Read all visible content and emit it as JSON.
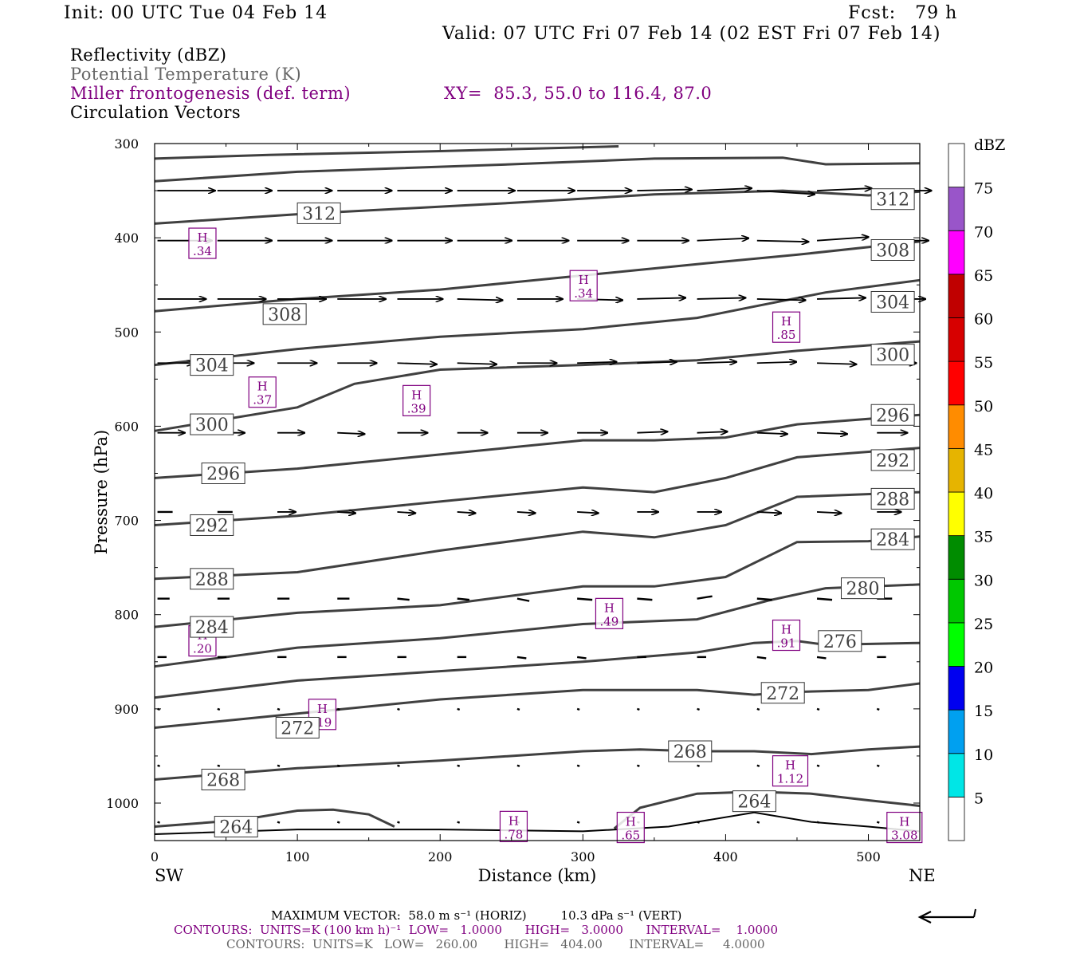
{
  "header": {
    "init": "Init: 00 UTC Tue 04 Feb 14",
    "fcst": "Fcst:   79 h",
    "valid": "Valid: 07 UTC Fri 07 Feb 14 (02 EST Fri 07 Feb 14)"
  },
  "fields": {
    "reflectivity": "Reflectivity (dBZ)",
    "theta": "Potential Temperature (K)",
    "frontogenesis": "Miller frontogenesis (def. term)",
    "xy": "XY=  85.3, 55.0 to 116.4, 87.0",
    "vectors": "Circulation Vectors"
  },
  "colors": {
    "theta_contour": "#404040",
    "frontogenesis": "#800080",
    "vector": "#000000"
  },
  "colorbar": {
    "title": "dBZ",
    "labels": [
      "5",
      "10",
      "15",
      "20",
      "25",
      "30",
      "35",
      "40",
      "45",
      "50",
      "55",
      "60",
      "65",
      "70",
      "75"
    ],
    "bins": [
      {
        "color": "#ffffff"
      },
      {
        "color": "#00e6e6"
      },
      {
        "color": "#00a0f0"
      },
      {
        "color": "#0000f0"
      },
      {
        "color": "#00ff00"
      },
      {
        "color": "#00c800"
      },
      {
        "color": "#008c00"
      },
      {
        "color": "#ffff00"
      },
      {
        "color": "#e6b400"
      },
      {
        "color": "#ff8c00"
      },
      {
        "color": "#ff0000"
      },
      {
        "color": "#d70000"
      },
      {
        "color": "#c00000"
      },
      {
        "color": "#ff00ff"
      },
      {
        "color": "#9955c9"
      },
      {
        "color": "#ffffff"
      }
    ]
  },
  "chart_data": {
    "type": "cross-section",
    "xlabel": "Distance (km)",
    "ylabel": "Pressure (hPa)",
    "xlim": [
      0,
      536
    ],
    "ylim": [
      1030,
      300
    ],
    "x_ticks": [
      0,
      100,
      200,
      300,
      400,
      500
    ],
    "y_ticks": [
      300,
      400,
      500,
      600,
      700,
      800,
      900,
      1000
    ],
    "x_end_labels": {
      "left": "SW",
      "right": "NE"
    },
    "theta_contours": [
      {
        "level": null,
        "points": [
          [
            0,
            316
          ],
          [
            80,
            312
          ],
          [
            200,
            308
          ],
          [
            325,
            303
          ]
        ]
      },
      {
        "level": null,
        "points": [
          [
            0,
            340
          ],
          [
            100,
            330
          ],
          [
            250,
            322
          ],
          [
            350,
            316
          ],
          [
            440,
            315
          ],
          [
            470,
            322
          ],
          [
            536,
            321
          ]
        ]
      },
      {
        "level": "312",
        "label_at": [
          100,
          374
        ],
        "points": [
          [
            0,
            385
          ],
          [
            100,
            375
          ],
          [
            250,
            363
          ],
          [
            350,
            354
          ],
          [
            440,
            350
          ],
          [
            500,
            355
          ],
          [
            536,
            351
          ]
        ]
      },
      {
        "level": "308",
        "label_at": [
          76,
          481
        ],
        "points": [
          [
            0,
            478
          ],
          [
            100,
            465
          ],
          [
            200,
            455
          ],
          [
            300,
            440
          ],
          [
            380,
            428
          ],
          [
            450,
            418
          ],
          [
            536,
            404
          ]
        ]
      },
      {
        "level": "304",
        "label_at": [
          25,
          535
        ],
        "points": [
          [
            0,
            535
          ],
          [
            100,
            518
          ],
          [
            200,
            505
          ],
          [
            300,
            497
          ],
          [
            380,
            485
          ],
          [
            430,
            470
          ],
          [
            470,
            458
          ],
          [
            536,
            445
          ]
        ]
      },
      {
        "level": "300",
        "label_at": [
          25,
          598
        ],
        "points": [
          [
            0,
            605
          ],
          [
            100,
            580
          ],
          [
            140,
            555
          ],
          [
            200,
            540
          ],
          [
            300,
            535
          ],
          [
            380,
            530
          ],
          [
            450,
            520
          ],
          [
            536,
            510
          ]
        ]
      },
      {
        "level": "296",
        "label_at": [
          33,
          650
        ],
        "points": [
          [
            0,
            655
          ],
          [
            100,
            645
          ],
          [
            200,
            630
          ],
          [
            300,
            615
          ],
          [
            350,
            615
          ],
          [
            400,
            612
          ],
          [
            450,
            598
          ],
          [
            536,
            588
          ]
        ]
      },
      {
        "level": "292",
        "label_at": [
          25,
          705
        ],
        "points": [
          [
            0,
            705
          ],
          [
            100,
            695
          ],
          [
            200,
            680
          ],
          [
            300,
            665
          ],
          [
            350,
            670
          ],
          [
            400,
            655
          ],
          [
            450,
            633
          ],
          [
            536,
            623
          ]
        ]
      },
      {
        "level": "288",
        "label_at": [
          25,
          762
        ],
        "points": [
          [
            0,
            762
          ],
          [
            100,
            755
          ],
          [
            200,
            732
          ],
          [
            300,
            712
          ],
          [
            350,
            718
          ],
          [
            400,
            705
          ],
          [
            450,
            675
          ],
          [
            536,
            670
          ]
        ]
      },
      {
        "level": "284",
        "label_at": [
          25,
          813
        ],
        "points": [
          [
            0,
            813
          ],
          [
            100,
            798
          ],
          [
            200,
            790
          ],
          [
            300,
            770
          ],
          [
            350,
            770
          ],
          [
            400,
            760
          ],
          [
            450,
            723
          ],
          [
            500,
            722
          ],
          [
            536,
            717
          ]
        ]
      },
      {
        "level": "280",
        "label_at": [
          null
        ],
        "points": [
          [
            0,
            855
          ],
          [
            100,
            835
          ],
          [
            200,
            825
          ],
          [
            300,
            810
          ],
          [
            380,
            805
          ],
          [
            430,
            785
          ],
          [
            470,
            772
          ],
          [
            536,
            768
          ]
        ]
      },
      {
        "level": "276",
        "label_at": [
          null
        ],
        "points": [
          [
            0,
            888
          ],
          [
            100,
            870
          ],
          [
            200,
            860
          ],
          [
            300,
            850
          ],
          [
            380,
            840
          ],
          [
            420,
            830
          ],
          [
            450,
            828
          ],
          [
            470,
            832
          ],
          [
            536,
            830
          ]
        ]
      },
      {
        "level": "272",
        "label_at": [
          85,
          920
        ],
        "points": [
          [
            0,
            920
          ],
          [
            100,
            905
          ],
          [
            200,
            890
          ],
          [
            300,
            880
          ],
          [
            380,
            880
          ],
          [
            420,
            885
          ],
          [
            450,
            882
          ],
          [
            500,
            880
          ],
          [
            536,
            873
          ]
        ]
      },
      {
        "level": "268",
        "label_at": [
          33,
          975
        ],
        "points": [
          [
            0,
            975
          ],
          [
            100,
            963
          ],
          [
            200,
            955
          ],
          [
            300,
            945
          ],
          [
            340,
            943
          ],
          [
            380,
            945
          ],
          [
            420,
            945
          ],
          [
            460,
            948
          ],
          [
            500,
            943
          ],
          [
            536,
            940
          ]
        ]
      },
      {
        "level": "264",
        "label_at": [
          42,
          1025
        ],
        "points": [
          [
            0,
            1025
          ],
          [
            60,
            1018
          ],
          [
            100,
            1008
          ],
          [
            125,
            1007
          ],
          [
            150,
            1012
          ],
          [
            168,
            1025
          ]
        ]
      },
      {
        "level": "264b",
        "label_at": [
          null
        ],
        "points": [
          [
            322,
            1027
          ],
          [
            340,
            1005
          ],
          [
            380,
            990
          ],
          [
            420,
            988
          ],
          [
            460,
            990
          ],
          [
            500,
            997
          ],
          [
            536,
            1003
          ]
        ]
      },
      {
        "level": null,
        "points": [
          [
            0,
            1033
          ],
          [
            100,
            1028
          ],
          [
            200,
            1028
          ],
          [
            300,
            1030
          ],
          [
            360,
            1025
          ],
          [
            420,
            1010
          ],
          [
            460,
            1020
          ],
          [
            500,
            1025
          ],
          [
            536,
            1030
          ]
        ]
      }
    ],
    "theta_labels": [
      {
        "text": "312",
        "x": 100,
        "p": 374
      },
      {
        "text": "312",
        "x": 502,
        "p": 359
      },
      {
        "text": "308",
        "x": 76,
        "p": 481
      },
      {
        "text": "308",
        "x": 502,
        "p": 413
      },
      {
        "text": "304",
        "x": 25,
        "p": 535
      },
      {
        "text": "304",
        "x": 502,
        "p": 468
      },
      {
        "text": "300",
        "x": 25,
        "p": 598
      },
      {
        "text": "300",
        "x": 502,
        "p": 524
      },
      {
        "text": "296",
        "x": 33,
        "p": 650
      },
      {
        "text": "296",
        "x": 502,
        "p": 588
      },
      {
        "text": "292",
        "x": 25,
        "p": 705
      },
      {
        "text": "292",
        "x": 502,
        "p": 636
      },
      {
        "text": "288",
        "x": 25,
        "p": 762
      },
      {
        "text": "288",
        "x": 502,
        "p": 677
      },
      {
        "text": "284",
        "x": 25,
        "p": 813
      },
      {
        "text": "284",
        "x": 502,
        "p": 720
      },
      {
        "text": "280",
        "x": 481,
        "p": 772
      },
      {
        "text": "276",
        "x": 465,
        "p": 828
      },
      {
        "text": "272",
        "x": 85,
        "p": 920
      },
      {
        "text": "272",
        "x": 425,
        "p": 883
      },
      {
        "text": "268",
        "x": 33,
        "p": 975
      },
      {
        "text": "268",
        "x": 360,
        "p": 945
      },
      {
        "text": "264",
        "x": 42,
        "p": 1025
      },
      {
        "text": "264",
        "x": 405,
        "p": 998
      }
    ],
    "frontogenesis_maxima": [
      {
        "label": "H",
        "value": ".34",
        "x": 24,
        "p": 405
      },
      {
        "label": "H",
        "value": ".34",
        "x": 291,
        "p": 450
      },
      {
        "label": "H",
        "value": ".85",
        "x": 433,
        "p": 494
      },
      {
        "label": "H",
        "value": ".37",
        "x": 66,
        "p": 563
      },
      {
        "label": "H",
        "value": ".39",
        "x": 174,
        "p": 572
      },
      {
        "label": "H",
        "value": ".49",
        "x": 309,
        "p": 798
      },
      {
        "label": "H",
        "value": ".91",
        "x": 433,
        "p": 821
      },
      {
        "label": "H",
        "value": ".20",
        "x": 24,
        "p": 827
      },
      {
        "label": "H",
        "value": ".19",
        "x": 108,
        "p": 905
      },
      {
        "label": "H",
        "value": "1.12",
        "x": 433,
        "p": 965
      },
      {
        "label": "H",
        "value": ".78",
        "x": 242,
        "p": 1024
      },
      {
        "label": "H",
        "value": ".65",
        "x": 324,
        "p": 1025
      },
      {
        "label": "H",
        "value": "3.08",
        "x": 513,
        "p": 1025
      }
    ],
    "vector_rows": [
      {
        "p": 350,
        "u": [
          38,
          36,
          36,
          36,
          36,
          38,
          38,
          36,
          36,
          36,
          38,
          36
        ],
        "w": [
          0,
          0,
          0,
          0,
          0,
          0,
          0,
          0,
          -1,
          -2,
          3,
          -2
        ]
      },
      {
        "p": 403,
        "u": [
          36,
          36,
          36,
          36,
          36,
          36,
          34,
          34,
          34,
          34,
          34,
          34
        ],
        "w": [
          0,
          0,
          0,
          0,
          0,
          0,
          0,
          0,
          0,
          -2,
          1,
          -3
        ]
      },
      {
        "p": 465,
        "u": [
          32,
          32,
          32,
          32,
          30,
          30,
          30,
          30,
          32,
          32,
          32,
          32
        ],
        "w": [
          0,
          0,
          0,
          0,
          0,
          1,
          0,
          1,
          -1,
          -1,
          1,
          -1
        ]
      },
      {
        "p": 533,
        "u": [
          24,
          24,
          26,
          26,
          26,
          26,
          26,
          26,
          26,
          26,
          26,
          26
        ],
        "w": [
          0,
          0,
          0,
          0,
          1,
          1,
          0,
          -1,
          -1,
          -1,
          -1,
          1
        ]
      },
      {
        "p": 607,
        "u": [
          18,
          18,
          18,
          18,
          20,
          20,
          20,
          20,
          20,
          20,
          20,
          20
        ],
        "w": [
          0,
          0,
          0,
          1,
          0,
          0,
          0,
          0,
          -1,
          -1,
          1,
          1
        ]
      },
      {
        "p": 691,
        "u": [
          10,
          10,
          12,
          12,
          12,
          12,
          12,
          14,
          14,
          16,
          16,
          16
        ],
        "w": [
          0,
          0,
          0,
          1,
          1,
          1,
          1,
          1,
          0,
          0,
          1,
          1
        ]
      },
      {
        "p": 783,
        "u": [
          8,
          8,
          8,
          8,
          8,
          8,
          8,
          10,
          10,
          10,
          10,
          10
        ],
        "w": [
          0,
          0,
          0,
          0,
          1,
          1,
          2,
          1,
          1,
          -2,
          1,
          1
        ]
      },
      {
        "p": 845,
        "u": [
          6,
          6,
          6,
          6,
          6,
          6,
          6,
          6,
          6,
          6,
          6,
          6
        ],
        "w": [
          0,
          0,
          0,
          0,
          0,
          0,
          1,
          1,
          0,
          0,
          1,
          1
        ]
      },
      {
        "p": 900,
        "u": [
          2,
          2,
          2,
          2,
          2,
          2,
          2,
          2,
          2,
          2,
          2,
          2
        ],
        "w": [
          1,
          0,
          1,
          0,
          0,
          1,
          1,
          1,
          0,
          1,
          0,
          0
        ]
      },
      {
        "p": 960,
        "u": [
          1,
          1,
          1,
          1,
          1,
          1,
          1,
          1,
          1,
          1,
          1,
          1
        ],
        "w": [
          -1,
          0,
          -1,
          0,
          -1,
          -1,
          -1,
          0,
          0,
          -1,
          0,
          -1
        ]
      },
      {
        "p": 1020,
        "u": [
          1,
          1,
          1,
          1,
          1,
          1,
          1,
          1,
          1,
          1,
          1,
          1
        ],
        "w": [
          0,
          1,
          0,
          0,
          0,
          0,
          1,
          0,
          0,
          0,
          1,
          0
        ]
      }
    ]
  },
  "footer": {
    "max_vector": "MAXIMUM VECTOR:  58.0 m s⁻¹ (HORIZ)         10.3 dPa s⁻¹ (VERT)",
    "contours_fronto": "CONTOURS:  UNITS=K (100 km h)⁻¹  LOW=   1.0000      HIGH=   3.0000      INTERVAL=    1.0000",
    "contours_theta": "CONTOURS:  UNITS=K   LOW=   260.00       HIGH=   404.00       INTERVAL=     4.0000"
  }
}
